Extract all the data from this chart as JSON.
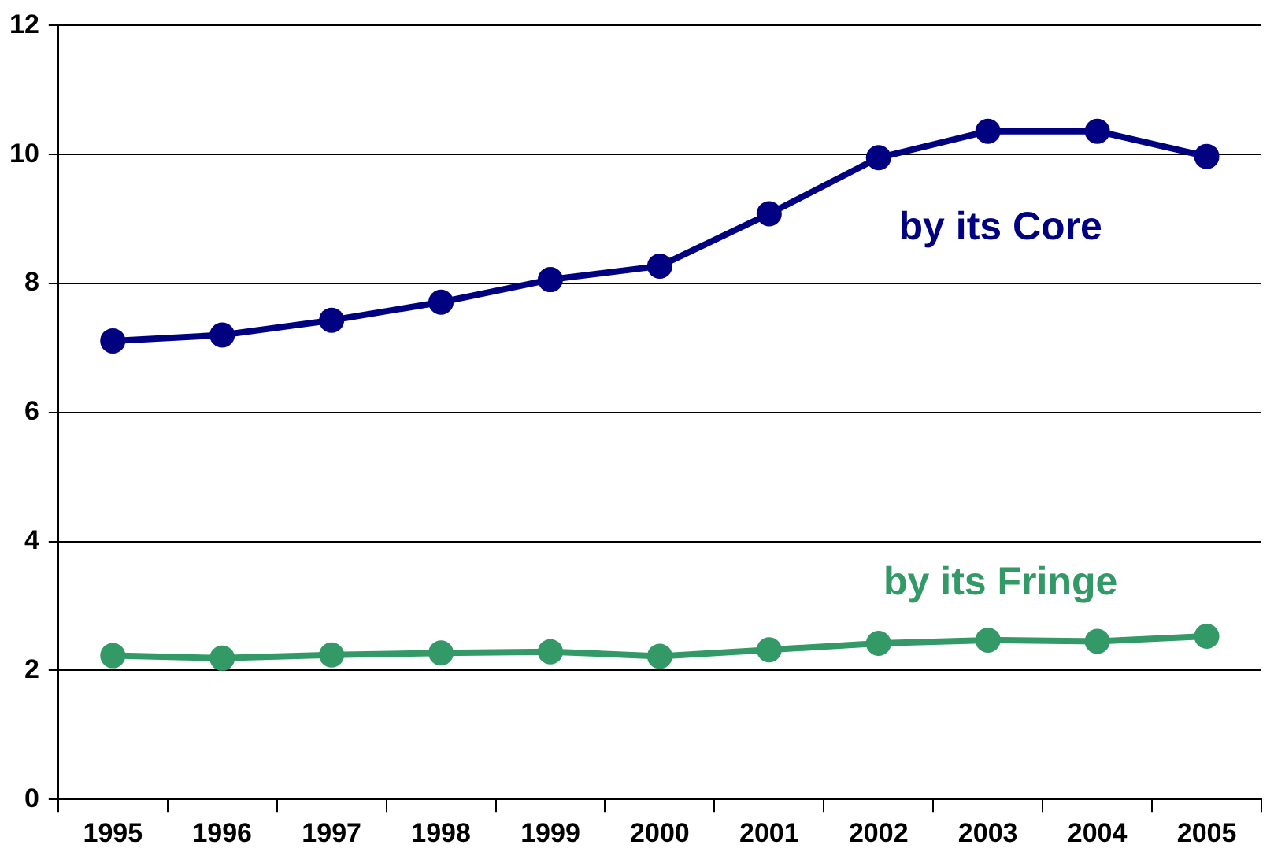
{
  "chart_data": {
    "type": "line",
    "categories": [
      "1995",
      "1996",
      "1997",
      "1998",
      "1999",
      "2000",
      "2001",
      "2002",
      "2003",
      "2004",
      "2005"
    ],
    "series": [
      {
        "name": "by its Core",
        "color": "#000080",
        "values": [
          7.11,
          7.2,
          7.43,
          7.71,
          8.06,
          8.27,
          9.08,
          9.95,
          10.36,
          10.36,
          9.97
        ]
      },
      {
        "name": "by its Fringe",
        "color": "#339966",
        "values": [
          2.23,
          2.19,
          2.24,
          2.27,
          2.29,
          2.22,
          2.32,
          2.42,
          2.47,
          2.45,
          2.53
        ]
      }
    ],
    "ylim": [
      0,
      12
    ],
    "yticks": [
      0,
      2,
      4,
      6,
      8,
      10,
      12
    ],
    "grid": "y",
    "marker": "circle",
    "line_style": "solid",
    "legend": false
  }
}
